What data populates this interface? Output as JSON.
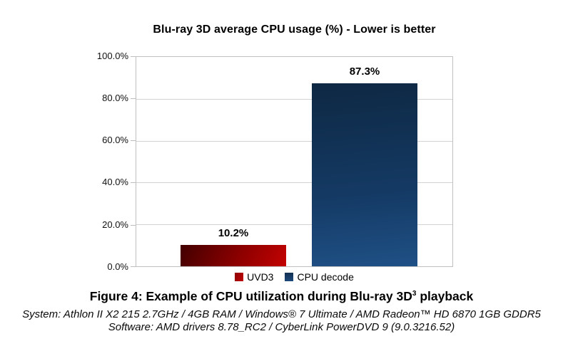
{
  "chart_data": {
    "type": "bar",
    "title": "Blu-ray 3D average CPU usage (%) - Lower is better",
    "categories": [
      ""
    ],
    "series": [
      {
        "name": "UVD3",
        "value": 10.2,
        "label": "10.2%",
        "color": "#c00000"
      },
      {
        "name": "CPU decode",
        "value": 87.3,
        "label": "87.3%",
        "color": "#17375e"
      }
    ],
    "ylim": [
      0,
      100
    ],
    "yticks": [
      "100.0%",
      "80.0%",
      "60.0%",
      "40.0%",
      "20.0%",
      "0.0%"
    ],
    "ylabel": "",
    "xlabel": "",
    "grid": "horizontal gridlines on, 20% intervals",
    "legend_position": "bottom"
  },
  "caption": {
    "text_before_sup": "Figure 4: Example of CPU utilization during Blu-ray 3D",
    "superscript": "3",
    "text_after_sup": " playback"
  },
  "footer": {
    "system_line": "System: Athlon II X2 215 2.7GHz / 4GB RAM / Windows® 7 Ultimate / AMD Radeon™ HD 6870 1GB GDDR5",
    "software_line": "Software: AMD drivers 8.78_RC2 / CyberLink PowerDVD 9 (9.0.3216.52)"
  },
  "colors": {
    "uvd3_bar_dark": "#420000",
    "uvd3_bar_bright": "#c30202",
    "cpu_bar_dark": "#0e2843",
    "cpu_bar_light": "#1f5086",
    "gridline": "#d2d2d2",
    "plot_border": "#c0c0c0"
  }
}
